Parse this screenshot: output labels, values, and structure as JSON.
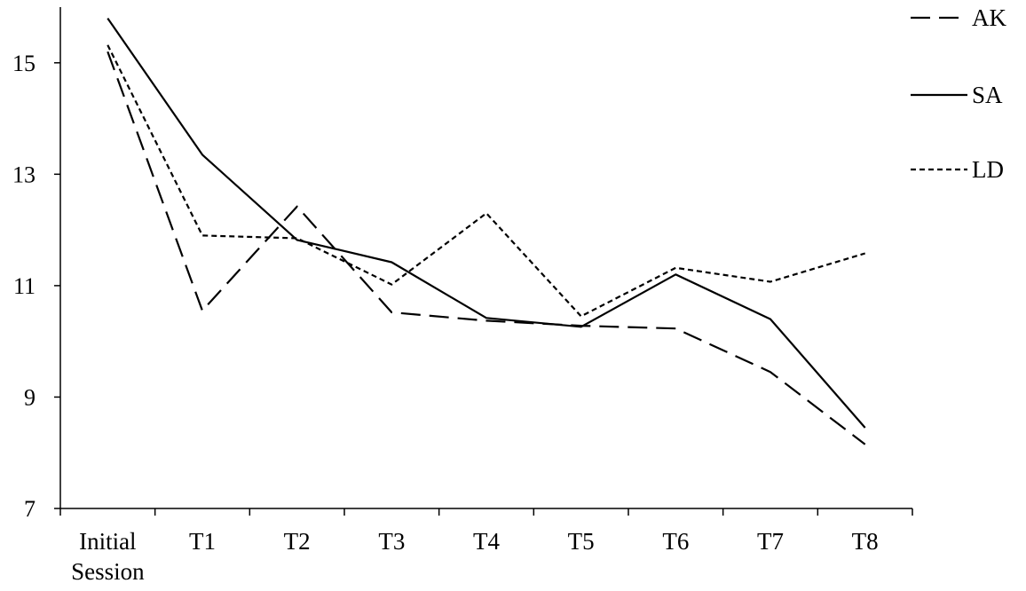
{
  "chart_data": {
    "type": "line",
    "categories": [
      [
        "Initial",
        "Session"
      ],
      [
        "T1"
      ],
      [
        "T2"
      ],
      [
        "T3"
      ],
      [
        "T4"
      ],
      [
        "T5"
      ],
      [
        "T6"
      ],
      [
        "T7"
      ],
      [
        "T8"
      ]
    ],
    "ylim": [
      7,
      16
    ],
    "yticks": [
      7,
      9,
      11,
      13,
      15
    ],
    "grid": false,
    "legend_position": "top-right",
    "series": [
      {
        "name": "AK",
        "style": "dashed",
        "color": "#000000",
        "values": [
          15.2,
          10.55,
          12.42,
          10.52,
          10.37,
          10.28,
          10.23,
          9.45,
          8.15
        ]
      },
      {
        "name": "SA",
        "style": "solid",
        "color": "#000000",
        "values": [
          15.8,
          13.35,
          11.82,
          11.42,
          10.42,
          10.26,
          11.2,
          10.4,
          8.45
        ]
      },
      {
        "name": "LD",
        "style": "dotted",
        "color": "#000000",
        "values": [
          15.32,
          11.9,
          11.85,
          11.02,
          12.3,
          10.45,
          11.32,
          11.07,
          11.58
        ]
      }
    ]
  }
}
